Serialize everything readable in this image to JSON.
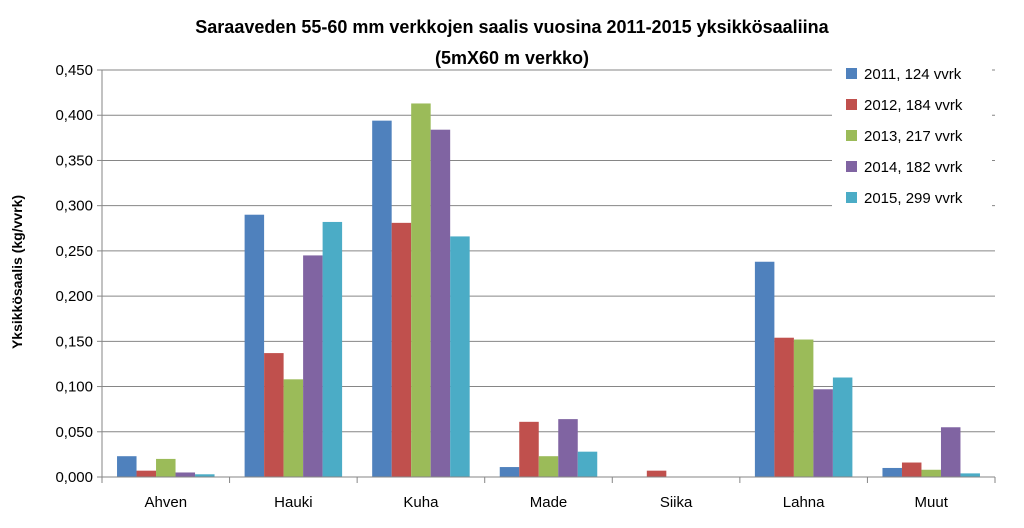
{
  "chart_data": {
    "type": "bar",
    "title_line1": "Saraaveden 55-60  mm verkkojen saalis vuosina 2011-2015 yksikkösaaliina",
    "title_line2": "(5mX60 m verkko)",
    "ylabel": "Yksikkösaalis (kg/vvrk)",
    "xlabel": "",
    "ylim": [
      0,
      0.45
    ],
    "yticks": [
      "0,000",
      "0,050",
      "0,100",
      "0,150",
      "0,200",
      "0,250",
      "0,300",
      "0,350",
      "0,400",
      "0,450"
    ],
    "grid": true,
    "legend_position": "right",
    "categories": [
      "Ahven",
      "Hauki",
      "Kuha",
      "Made",
      "Siika",
      "Lahna",
      "Muut"
    ],
    "series": [
      {
        "name": "2011, 124 vvrk",
        "color": "#4F81BD",
        "values": [
          0.023,
          0.29,
          0.394,
          0.011,
          0.0,
          0.238,
          0.01
        ]
      },
      {
        "name": "2012, 184 vvrk",
        "color": "#C0504D",
        "values": [
          0.007,
          0.137,
          0.281,
          0.061,
          0.007,
          0.154,
          0.016
        ]
      },
      {
        "name": "2013, 217 vvrk",
        "color": "#9BBB59",
        "values": [
          0.02,
          0.108,
          0.413,
          0.023,
          0.0,
          0.152,
          0.008
        ]
      },
      {
        "name": "2014, 182 vvrk",
        "color": "#8064A2",
        "values": [
          0.005,
          0.245,
          0.384,
          0.064,
          0.0,
          0.097,
          0.055
        ]
      },
      {
        "name": "2015, 299 vvrk",
        "color": "#4BACC6",
        "values": [
          0.003,
          0.282,
          0.266,
          0.028,
          0.0,
          0.11,
          0.004
        ]
      }
    ]
  }
}
